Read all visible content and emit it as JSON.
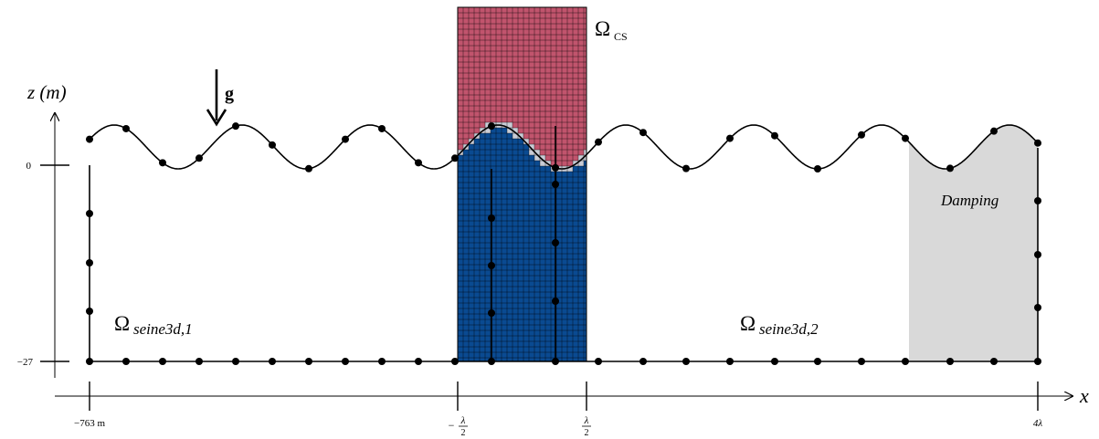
{
  "labels": {
    "z_axis": "z (m)",
    "x_axis": "x",
    "gravity": "g",
    "omega_cs": "Ω",
    "omega_cs_sub": "CS",
    "omega_left": "Ω",
    "omega_left_sub": "seine3d,1",
    "omega_right": "Ω",
    "omega_right_sub": "seine3d,2",
    "damping": "Damping"
  },
  "z_ticks": [
    "0",
    "−27"
  ],
  "x_ticks": {
    "left": "−763 m",
    "cs_left_sign": "−",
    "cs_left_num": "λ",
    "cs_left_den": "2",
    "cs_right_num": "λ",
    "cs_right_den": "2",
    "right": "4λ"
  },
  "colors": {
    "air": "#c1546d",
    "water": "#0a4a91",
    "interface": "#c9ccd6",
    "damping": "#d9d9d9",
    "line": "#000000"
  }
}
